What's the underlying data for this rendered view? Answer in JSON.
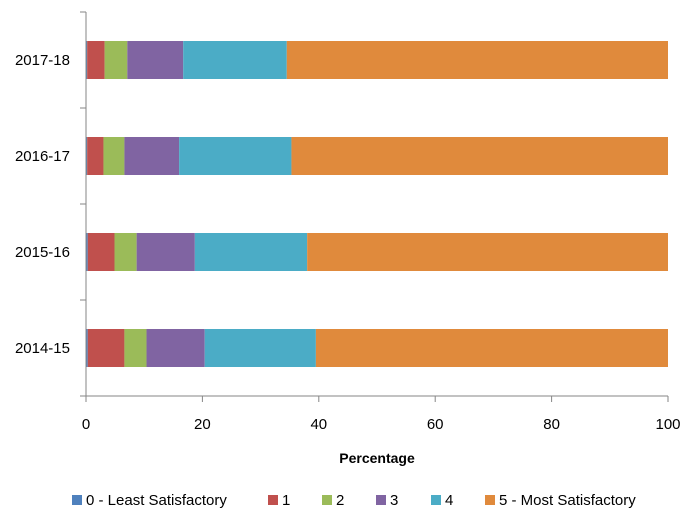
{
  "chart_data": {
    "type": "bar",
    "orientation": "horizontal",
    "stacked": true,
    "categories": [
      "2017-18",
      "2016-17",
      "2015-16",
      "2014-15"
    ],
    "series": [
      {
        "name": "0 - Least Satisfactory",
        "color": "#4f81bd",
        "values": [
          0.2,
          0.2,
          0.3,
          0.3
        ]
      },
      {
        "name": "1",
        "color": "#c0504d",
        "values": [
          3.0,
          2.8,
          4.6,
          6.3
        ]
      },
      {
        "name": "2",
        "color": "#9bbb59",
        "values": [
          3.9,
          3.6,
          3.8,
          3.8
        ]
      },
      {
        "name": "3",
        "color": "#8064a2",
        "values": [
          9.6,
          9.4,
          10.0,
          10.0
        ]
      },
      {
        "name": "4",
        "color": "#4bacc6",
        "values": [
          17.8,
          19.3,
          19.3,
          19.1
        ]
      },
      {
        "name": "5 - Most Satisfactory",
        "color": "#e08a3c",
        "values": [
          65.5,
          64.7,
          62.0,
          60.5
        ]
      }
    ],
    "xlabel": "Percentage",
    "ylabel": "",
    "xlim": [
      0,
      100
    ],
    "xticks": [
      0,
      20,
      40,
      60,
      80,
      100
    ],
    "grid": false,
    "legend_position": "bottom"
  }
}
